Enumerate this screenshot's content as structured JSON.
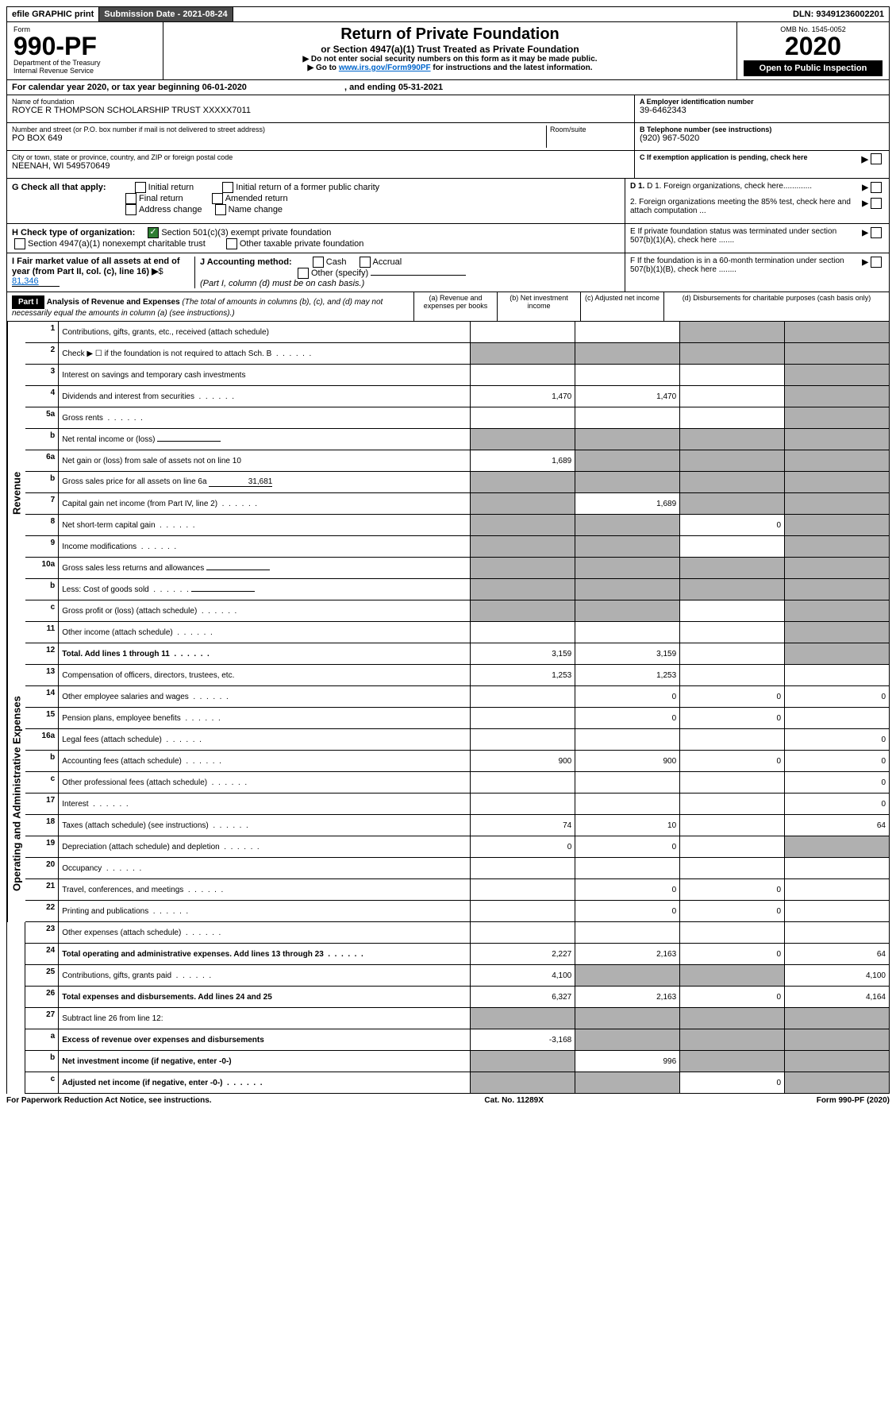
{
  "topbar": {
    "efile": "efile GRAPHIC print",
    "submission": "Submission Date - 2021-08-24",
    "dln": "DLN: 93491236002201"
  },
  "header": {
    "form_label": "Form",
    "form_num": "990-PF",
    "dept": "Department of the Treasury",
    "irs": "Internal Revenue Service",
    "title": "Return of Private Foundation",
    "subtitle": "or Section 4947(a)(1) Trust Treated as Private Foundation",
    "inst1": "▶ Do not enter social security numbers on this form as it may be made public.",
    "inst2_pre": "▶ Go to ",
    "inst2_link": "www.irs.gov/Form990PF",
    "inst2_post": " for instructions and the latest information.",
    "omb": "OMB No. 1545-0052",
    "year": "2020",
    "open": "Open to Public Inspection"
  },
  "calendar": {
    "text_pre": "For calendar year 2020, or tax year beginning ",
    "begin": "06-01-2020",
    "text_mid": " , and ending ",
    "end": "05-31-2021"
  },
  "info": {
    "name_label": "Name of foundation",
    "name": "ROYCE R THOMPSON SCHOLARSHIP TRUST XXXXX7011",
    "addr_label": "Number and street (or P.O. box number if mail is not delivered to street address)",
    "addr": "PO BOX 649",
    "room_label": "Room/suite",
    "city_label": "City or town, state or province, country, and ZIP or foreign postal code",
    "city": "NEENAH, WI  549570649",
    "a_label": "A Employer identification number",
    "a_val": "39-6462343",
    "b_label": "B Telephone number (see instructions)",
    "b_val": "(920) 967-5020",
    "c_label": "C If exemption application is pending, check here"
  },
  "checks": {
    "g_label": "G Check all that apply:",
    "g_opts": [
      "Initial return",
      "Initial return of a former public charity",
      "Final return",
      "Amended return",
      "Address change",
      "Name change"
    ],
    "h_label": "H Check type of organization:",
    "h_opt1": "Section 501(c)(3) exempt private foundation",
    "h_opt2": "Section 4947(a)(1) nonexempt charitable trust",
    "h_opt3": "Other taxable private foundation",
    "i_label": "I Fair market value of all assets at end of year (from Part II, col. (c), line 16)",
    "i_val": "81,346",
    "j_label": "J Accounting method:",
    "j_opts": [
      "Cash",
      "Accrual"
    ],
    "j_other": "Other (specify)",
    "j_note": "(Part I, column (d) must be on cash basis.)",
    "d1": "D 1. Foreign organizations, check here.............",
    "d2": "2. Foreign organizations meeting the 85% test, check here and attach computation ...",
    "e": "E  If private foundation status was terminated under section 507(b)(1)(A), check here .......",
    "f": "F  If the foundation is in a 60-month termination under section 507(b)(1)(B), check here ........"
  },
  "part1": {
    "label": "Part I",
    "title": "Analysis of Revenue and Expenses",
    "note": "(The total of amounts in columns (b), (c), and (d) may not necessarily equal the amounts in column (a) (see instructions).)",
    "col_a": "(a) Revenue and expenses per books",
    "col_b": "(b) Net investment income",
    "col_c": "(c) Adjusted net income",
    "col_d": "(d) Disbursements for charitable purposes (cash basis only)"
  },
  "side_labels": {
    "revenue": "Revenue",
    "expenses": "Operating and Administrative Expenses"
  },
  "rows": [
    {
      "n": "1",
      "desc": "Contributions, gifts, grants, etc., received (attach schedule)",
      "a": "",
      "b": "",
      "c": "s",
      "d": "s"
    },
    {
      "n": "2",
      "desc": "Check ▶ ☐ if the foundation is not required to attach Sch. B",
      "dots": true,
      "a": "s",
      "b": "s",
      "c": "s",
      "d": "s"
    },
    {
      "n": "3",
      "desc": "Interest on savings and temporary cash investments",
      "a": "",
      "b": "",
      "c": "",
      "d": "s"
    },
    {
      "n": "4",
      "desc": "Dividends and interest from securities",
      "dots": true,
      "a": "1,470",
      "b": "1,470",
      "c": "",
      "d": "s"
    },
    {
      "n": "5a",
      "desc": "Gross rents",
      "dots": true,
      "a": "",
      "b": "",
      "c": "",
      "d": "s"
    },
    {
      "n": "b",
      "desc": "Net rental income or (loss)",
      "inline": true,
      "a": "s",
      "b": "s",
      "c": "s",
      "d": "s"
    },
    {
      "n": "6a",
      "desc": "Net gain or (loss) from sale of assets not on line 10",
      "a": "1,689",
      "b": "s",
      "c": "s",
      "d": "s"
    },
    {
      "n": "b",
      "desc": "Gross sales price for all assets on line 6a",
      "inline_val": "31,681",
      "a": "s",
      "b": "s",
      "c": "s",
      "d": "s"
    },
    {
      "n": "7",
      "desc": "Capital gain net income (from Part IV, line 2)",
      "dots": true,
      "a": "s",
      "b": "1,689",
      "c": "s",
      "d": "s"
    },
    {
      "n": "8",
      "desc": "Net short-term capital gain",
      "dots": true,
      "a": "s",
      "b": "s",
      "c": "0",
      "d": "s"
    },
    {
      "n": "9",
      "desc": "Income modifications",
      "dots": true,
      "a": "s",
      "b": "s",
      "c": "",
      "d": "s"
    },
    {
      "n": "10a",
      "desc": "Gross sales less returns and allowances",
      "inline": true,
      "a": "s",
      "b": "s",
      "c": "s",
      "d": "s"
    },
    {
      "n": "b",
      "desc": "Less: Cost of goods sold",
      "dots": true,
      "inline": true,
      "a": "s",
      "b": "s",
      "c": "s",
      "d": "s"
    },
    {
      "n": "c",
      "desc": "Gross profit or (loss) (attach schedule)",
      "dots": true,
      "a": "s",
      "b": "s",
      "c": "",
      "d": "s"
    },
    {
      "n": "11",
      "desc": "Other income (attach schedule)",
      "dots": true,
      "a": "",
      "b": "",
      "c": "",
      "d": "s"
    },
    {
      "n": "12",
      "desc": "Total. Add lines 1 through 11",
      "dots": true,
      "bold": true,
      "a": "3,159",
      "b": "3,159",
      "c": "",
      "d": "s"
    },
    {
      "n": "13",
      "desc": "Compensation of officers, directors, trustees, etc.",
      "a": "1,253",
      "b": "1,253",
      "c": "",
      "d": ""
    },
    {
      "n": "14",
      "desc": "Other employee salaries and wages",
      "dots": true,
      "a": "",
      "b": "0",
      "c": "0",
      "d": "0"
    },
    {
      "n": "15",
      "desc": "Pension plans, employee benefits",
      "dots": true,
      "a": "",
      "b": "0",
      "c": "0",
      "d": ""
    },
    {
      "n": "16a",
      "desc": "Legal fees (attach schedule)",
      "dots": true,
      "a": "",
      "b": "",
      "c": "",
      "d": "0"
    },
    {
      "n": "b",
      "desc": "Accounting fees (attach schedule)",
      "dots": true,
      "a": "900",
      "b": "900",
      "c": "0",
      "d": "0"
    },
    {
      "n": "c",
      "desc": "Other professional fees (attach schedule)",
      "dots": true,
      "a": "",
      "b": "",
      "c": "",
      "d": "0"
    },
    {
      "n": "17",
      "desc": "Interest",
      "dots": true,
      "a": "",
      "b": "",
      "c": "",
      "d": "0"
    },
    {
      "n": "18",
      "desc": "Taxes (attach schedule) (see instructions)",
      "dots": true,
      "a": "74",
      "b": "10",
      "c": "",
      "d": "64"
    },
    {
      "n": "19",
      "desc": "Depreciation (attach schedule) and depletion",
      "dots": true,
      "a": "0",
      "b": "0",
      "c": "",
      "d": "s"
    },
    {
      "n": "20",
      "desc": "Occupancy",
      "dots": true,
      "a": "",
      "b": "",
      "c": "",
      "d": ""
    },
    {
      "n": "21",
      "desc": "Travel, conferences, and meetings",
      "dots": true,
      "a": "",
      "b": "0",
      "c": "0",
      "d": ""
    },
    {
      "n": "22",
      "desc": "Printing and publications",
      "dots": true,
      "a": "",
      "b": "0",
      "c": "0",
      "d": ""
    },
    {
      "n": "23",
      "desc": "Other expenses (attach schedule)",
      "dots": true,
      "a": "",
      "b": "",
      "c": "",
      "d": ""
    },
    {
      "n": "24",
      "desc": "Total operating and administrative expenses. Add lines 13 through 23",
      "dots": true,
      "bold": true,
      "a": "2,227",
      "b": "2,163",
      "c": "0",
      "d": "64"
    },
    {
      "n": "25",
      "desc": "Contributions, gifts, grants paid",
      "dots": true,
      "a": "4,100",
      "b": "s",
      "c": "s",
      "d": "4,100"
    },
    {
      "n": "26",
      "desc": "Total expenses and disbursements. Add lines 24 and 25",
      "bold": true,
      "a": "6,327",
      "b": "2,163",
      "c": "0",
      "d": "4,164"
    },
    {
      "n": "27",
      "desc": "Subtract line 26 from line 12:",
      "a": "s",
      "b": "s",
      "c": "s",
      "d": "s"
    },
    {
      "n": "a",
      "desc": "Excess of revenue over expenses and disbursements",
      "bold": true,
      "a": "-3,168",
      "b": "s",
      "c": "s",
      "d": "s"
    },
    {
      "n": "b",
      "desc": "Net investment income (if negative, enter -0-)",
      "bold": true,
      "a": "s",
      "b": "996",
      "c": "s",
      "d": "s"
    },
    {
      "n": "c",
      "desc": "Adjusted net income (if negative, enter -0-)",
      "dots": true,
      "bold": true,
      "a": "s",
      "b": "s",
      "c": "0",
      "d": "s"
    }
  ],
  "footer": {
    "left": "For Paperwork Reduction Act Notice, see instructions.",
    "mid": "Cat. No. 11289X",
    "right": "Form 990-PF (2020)"
  }
}
